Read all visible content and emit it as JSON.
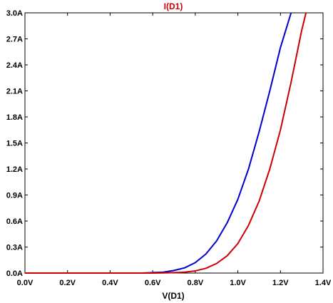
{
  "chart_data": {
    "type": "line",
    "title": "I(D1)",
    "xlabel": "V(D1)",
    "ylabel": "",
    "xlim": [
      0.0,
      1.4
    ],
    "ylim": [
      0.0,
      3.0
    ],
    "xticks": [
      0.0,
      0.2,
      0.4,
      0.6,
      0.8,
      1.0,
      1.2,
      1.4
    ],
    "xtick_labels": [
      "0.0V",
      "0.2V",
      "0.4V",
      "0.6V",
      "0.8V",
      "1.0V",
      "1.2V",
      "1.4V"
    ],
    "yticks": [
      0.0,
      0.3,
      0.6,
      0.9,
      1.2,
      1.5,
      1.8,
      2.1,
      2.4,
      2.7,
      3.0
    ],
    "ytick_labels": [
      "0.0A",
      "0.3A",
      "0.6A",
      "0.9A",
      "1.2A",
      "1.5A",
      "1.8A",
      "2.1A",
      "2.4A",
      "2.7A",
      "3.0A"
    ],
    "grid": false,
    "legend": "none",
    "series": [
      {
        "color": "#0000cc",
        "x": [
          0.0,
          0.5,
          0.55,
          0.6,
          0.65,
          0.7,
          0.75,
          0.8,
          0.85,
          0.9,
          0.95,
          1.0,
          1.05,
          1.1,
          1.15,
          1.2,
          1.25
        ],
        "y": [
          0.0,
          0.0,
          0.0,
          0.005,
          0.01,
          0.03,
          0.06,
          0.12,
          0.22,
          0.37,
          0.58,
          0.85,
          1.2,
          1.63,
          2.1,
          2.6,
          3.0
        ]
      },
      {
        "color": "#cc0000",
        "x": [
          0.0,
          0.55,
          0.6,
          0.65,
          0.7,
          0.75,
          0.8,
          0.85,
          0.9,
          0.95,
          1.0,
          1.05,
          1.1,
          1.15,
          1.2,
          1.25,
          1.3,
          1.32
        ],
        "y": [
          0.0,
          0.0,
          0.0,
          0.002,
          0.005,
          0.01,
          0.025,
          0.055,
          0.11,
          0.2,
          0.34,
          0.55,
          0.83,
          1.2,
          1.65,
          2.2,
          2.8,
          3.0
        ]
      }
    ],
    "title_color": "#cc0000"
  }
}
